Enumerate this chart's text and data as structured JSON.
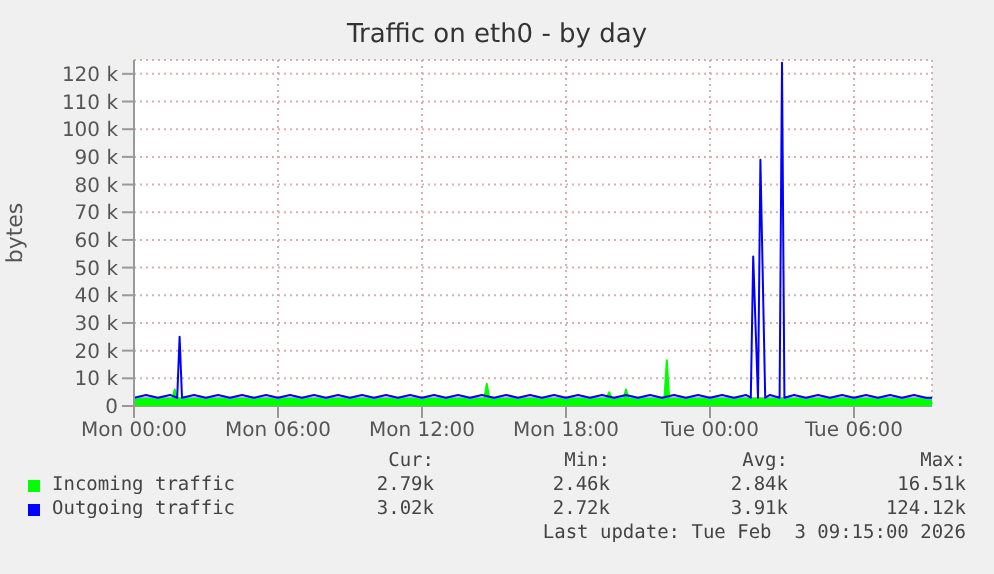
{
  "chart_data": {
    "type": "line",
    "title": "Traffic on eth0 - by day",
    "ylabel": "bytes",
    "xlim": [
      "2026-02-02T00:00",
      "2026-02-03T09:15"
    ],
    "xticks": [
      {
        "value": "2026-02-02T00:00",
        "label": "Mon 00:00"
      },
      {
        "value": "2026-02-02T06:00",
        "label": "Mon 06:00"
      },
      {
        "value": "2026-02-02T12:00",
        "label": "Mon 12:00"
      },
      {
        "value": "2026-02-02T18:00",
        "label": "Mon 18:00"
      },
      {
        "value": "2026-02-03T00:00",
        "label": "Tue 00:00"
      },
      {
        "value": "2026-02-03T06:00",
        "label": "Tue 06:00"
      }
    ],
    "ylim": [
      0,
      125000
    ],
    "yticks": [
      0,
      {
        "value": 10000,
        "label": "10 k"
      },
      {
        "value": 20000,
        "label": "20 k"
      },
      {
        "value": 30000,
        "label": "30 k"
      },
      {
        "value": 40000,
        "label": "40 k"
      },
      {
        "value": 50000,
        "label": "50 k"
      },
      {
        "value": 60000,
        "label": "60 k"
      },
      {
        "value": 70000,
        "label": "70 k"
      },
      {
        "value": 80000,
        "label": "80 k"
      },
      {
        "value": 90000,
        "label": "90 k"
      },
      {
        "value": 100000,
        "label": "100 k"
      },
      {
        "value": 110000,
        "label": "110 k"
      },
      {
        "value": 120000,
        "label": "120 k"
      }
    ],
    "grid": true,
    "legend": "bottom",
    "series": [
      {
        "name": "Incoming traffic",
        "type": "area",
        "color": "#00ff00",
        "x": [
          "2026-02-02T00:00",
          "2026-02-02T01:00",
          "2026-02-02T01:36",
          "2026-02-02T01:42",
          "2026-02-02T01:48",
          "2026-02-02T02:00",
          "2026-02-02T03:00",
          "2026-02-02T04:00",
          "2026-02-02T05:00",
          "2026-02-02T06:00",
          "2026-02-02T07:00",
          "2026-02-02T08:00",
          "2026-02-02T09:00",
          "2026-02-02T10:00",
          "2026-02-02T11:00",
          "2026-02-02T12:00",
          "2026-02-02T13:00",
          "2026-02-02T14:00",
          "2026-02-02T14:36",
          "2026-02-02T14:42",
          "2026-02-02T14:48",
          "2026-02-02T15:00",
          "2026-02-02T16:00",
          "2026-02-02T17:00",
          "2026-02-02T18:00",
          "2026-02-02T19:00",
          "2026-02-02T19:42",
          "2026-02-02T19:48",
          "2026-02-02T19:54",
          "2026-02-02T20:00",
          "2026-02-02T20:24",
          "2026-02-02T20:30",
          "2026-02-02T20:36",
          "2026-02-02T21:00",
          "2026-02-02T22:00",
          "2026-02-02T22:06",
          "2026-02-02T22:12",
          "2026-02-02T22:18",
          "2026-02-02T23:00",
          "2026-02-03T00:00",
          "2026-02-03T01:00",
          "2026-02-03T02:00",
          "2026-02-03T03:00",
          "2026-02-03T04:00",
          "2026-02-03T05:00",
          "2026-02-03T06:00",
          "2026-02-03T07:00",
          "2026-02-03T08:00",
          "2026-02-03T09:00",
          "2026-02-03T09:15"
        ],
        "values": [
          2800,
          2800,
          2800,
          6000,
          2800,
          2800,
          2800,
          2800,
          2800,
          2800,
          2800,
          2800,
          2800,
          2800,
          2800,
          2800,
          2800,
          2800,
          2800,
          8000,
          2800,
          2800,
          2800,
          2800,
          2800,
          2800,
          2800,
          5000,
          2800,
          2800,
          2800,
          6000,
          2800,
          2800,
          2800,
          2800,
          16500,
          2800,
          2800,
          2800,
          2800,
          2800,
          2800,
          2800,
          2800,
          2800,
          2800,
          2800,
          2800,
          2800
        ]
      },
      {
        "name": "Outgoing traffic",
        "color": "#0000ff",
        "x": [
          "2026-02-02T00:00",
          "2026-02-02T00:30",
          "2026-02-02T01:00",
          "2026-02-02T01:30",
          "2026-02-02T01:48",
          "2026-02-02T01:54",
          "2026-02-02T02:00",
          "2026-02-02T02:30",
          "2026-02-02T03:00",
          "2026-02-02T03:30",
          "2026-02-02T04:00",
          "2026-02-02T04:30",
          "2026-02-02T05:00",
          "2026-02-02T05:30",
          "2026-02-02T06:00",
          "2026-02-02T06:30",
          "2026-02-02T07:00",
          "2026-02-02T07:30",
          "2026-02-02T08:00",
          "2026-02-02T08:30",
          "2026-02-02T09:00",
          "2026-02-02T09:30",
          "2026-02-02T10:00",
          "2026-02-02T10:30",
          "2026-02-02T11:00",
          "2026-02-02T11:30",
          "2026-02-02T12:00",
          "2026-02-02T12:30",
          "2026-02-02T13:00",
          "2026-02-02T13:30",
          "2026-02-02T14:00",
          "2026-02-02T14:30",
          "2026-02-02T15:00",
          "2026-02-02T15:30",
          "2026-02-02T16:00",
          "2026-02-02T16:30",
          "2026-02-02T17:00",
          "2026-02-02T17:30",
          "2026-02-02T18:00",
          "2026-02-02T18:30",
          "2026-02-02T19:00",
          "2026-02-02T19:30",
          "2026-02-02T20:00",
          "2026-02-02T20:30",
          "2026-02-02T21:00",
          "2026-02-02T21:30",
          "2026-02-02T22:00",
          "2026-02-02T22:30",
          "2026-02-02T23:00",
          "2026-02-02T23:30",
          "2026-02-03T00:00",
          "2026-02-03T00:30",
          "2026-02-03T01:00",
          "2026-02-03T01:30",
          "2026-02-03T01:42",
          "2026-02-03T01:48",
          "2026-02-03T02:00",
          "2026-02-03T02:06",
          "2026-02-03T02:18",
          "2026-02-03T02:30",
          "2026-02-03T02:54",
          "2026-02-03T03:00",
          "2026-02-03T03:06",
          "2026-02-03T03:30",
          "2026-02-03T04:00",
          "2026-02-03T04:30",
          "2026-02-03T05:00",
          "2026-02-03T05:30",
          "2026-02-03T06:00",
          "2026-02-03T06:30",
          "2026-02-03T07:00",
          "2026-02-03T07:30",
          "2026-02-03T08:00",
          "2026-02-03T08:30",
          "2026-02-03T09:00",
          "2026-02-03T09:15"
        ],
        "values": [
          3000,
          4000,
          3000,
          4000,
          3000,
          25000,
          3000,
          4000,
          3000,
          4000,
          3000,
          4000,
          3000,
          4000,
          3000,
          4000,
          3000,
          4000,
          3000,
          4000,
          3000,
          4000,
          3000,
          4000,
          3000,
          4000,
          3000,
          4000,
          3000,
          4000,
          3000,
          4000,
          3000,
          4000,
          3000,
          4000,
          3000,
          4000,
          3000,
          4000,
          3000,
          4000,
          3000,
          4000,
          3000,
          4000,
          3000,
          4000,
          3000,
          4000,
          3000,
          4000,
          3000,
          4000,
          3000,
          54000,
          3000,
          89000,
          3000,
          4000,
          3000,
          124000,
          3000,
          4000,
          3000,
          4000,
          3000,
          4000,
          3000,
          4000,
          3000,
          4000,
          3000,
          4000,
          3000,
          3000
        ]
      }
    ],
    "annotations": [
      "Cur:",
      "Min:",
      "Avg:",
      "Max:",
      "2.79k",
      "2.46k",
      "2.84k",
      "16.51k",
      "3.02k",
      "2.72k",
      "3.91k",
      "124.12k",
      "Last update: Tue Feb  3 09:15:00 2026"
    ]
  }
}
